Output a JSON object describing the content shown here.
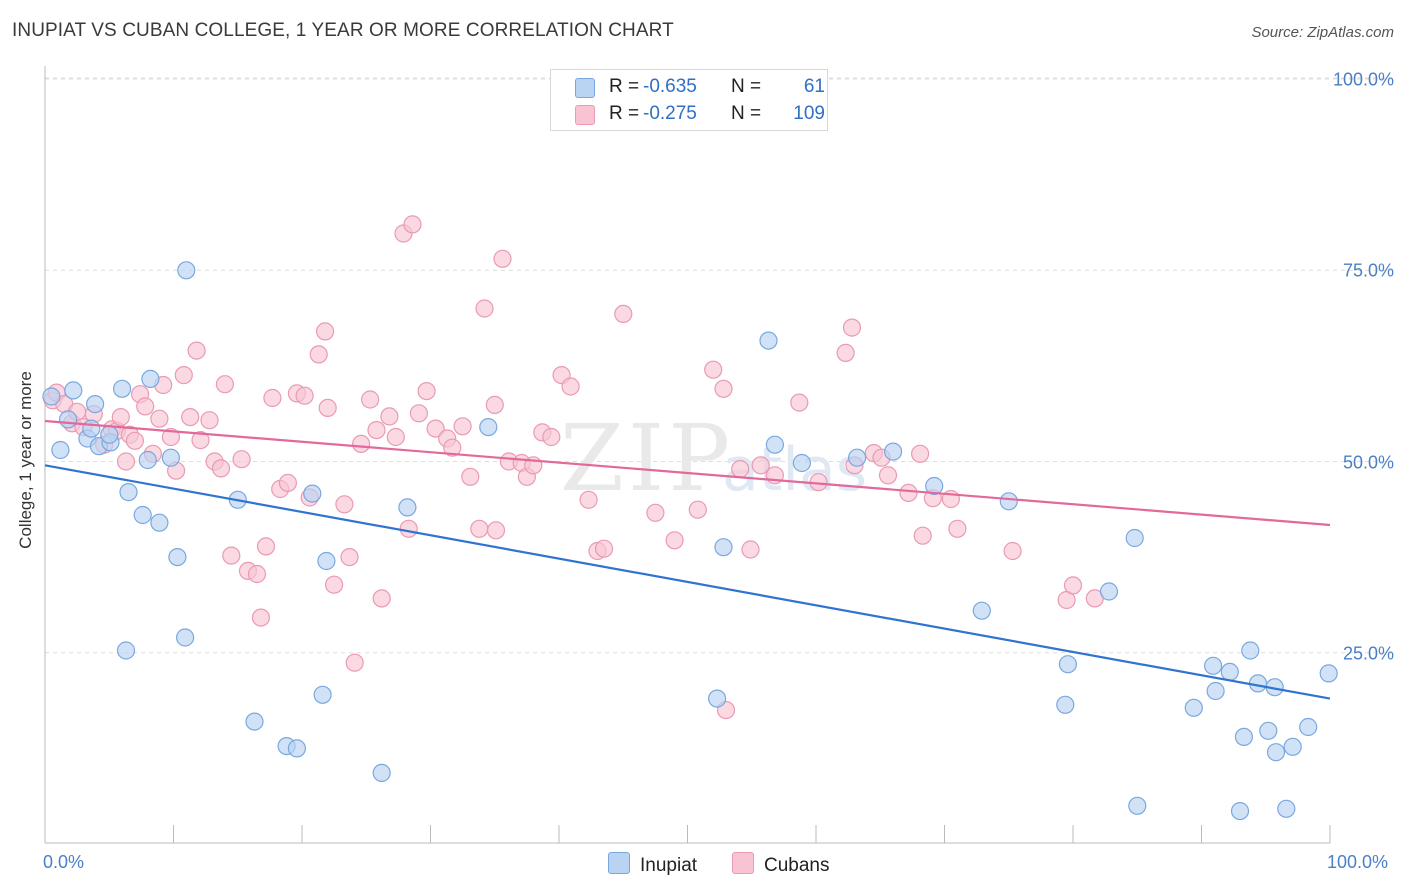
{
  "header": {
    "title": "INUPIAT VS CUBAN COLLEGE, 1 YEAR OR MORE CORRELATION CHART",
    "source": "Source: ZipAtlas.com"
  },
  "legend": {
    "rows": [
      {
        "label": "R =",
        "r_value": "-0.635",
        "n_label": "N =",
        "n_value": "61"
      },
      {
        "label": "R =",
        "r_value": "-0.275",
        "n_label": "N =",
        "n_value": "109"
      }
    ]
  },
  "bottom_legend": {
    "inupiat": "Inupiat",
    "cubans": "Cubans"
  },
  "colors": {
    "inupiat_fill": "#b9d3f3",
    "inupiat_stroke": "#7aa8de",
    "inupiat_line": "#2f74d0",
    "cubans_fill": "#f8c4d4",
    "cubans_stroke": "#ea9ab3",
    "cubans_line": "#e2699a",
    "tick_text": "#4a7fc8",
    "grid": "#dddddd"
  },
  "watermark": {
    "zip": "ZIP",
    "atlas": "atlas"
  },
  "chart_data": {
    "type": "scatter",
    "title": "INUPIAT VS CUBAN COLLEGE, 1 YEAR OR MORE CORRELATION CHART",
    "xlabel": "",
    "ylabel": "College, 1 year or more",
    "xlim": [
      0,
      100
    ],
    "ylim": [
      0,
      100
    ],
    "x_tick_labels": [
      "0.0%",
      "100.0%"
    ],
    "y_ticks": [
      {
        "value": 25,
        "label": "25.0%"
      },
      {
        "value": 50,
        "label": "50.0%"
      },
      {
        "value": 75,
        "label": "75.0%"
      },
      {
        "value": 100,
        "label": "100.0%"
      }
    ],
    "series": [
      {
        "name": "Inupiat",
        "r": -0.635,
        "n": 61,
        "trend": {
          "x": [
            0,
            100
          ],
          "y": [
            49.5,
            19.0
          ]
        },
        "points": [
          [
            0.5,
            58.5
          ],
          [
            1.2,
            51.5
          ],
          [
            2.2,
            59.3
          ],
          [
            1.8,
            55.5
          ],
          [
            3.3,
            53.0
          ],
          [
            3.9,
            57.5
          ],
          [
            4.2,
            52.0
          ],
          [
            5.1,
            52.5
          ],
          [
            5.0,
            53.5
          ],
          [
            6.0,
            59.5
          ],
          [
            6.5,
            46.0
          ],
          [
            7.6,
            43.0
          ],
          [
            8.2,
            60.8
          ],
          [
            8.0,
            50.2
          ],
          [
            8.9,
            42.0
          ],
          [
            9.8,
            50.5
          ],
          [
            10.3,
            37.5
          ],
          [
            10.9,
            27.0
          ],
          [
            11.0,
            75.0
          ],
          [
            6.3,
            25.3
          ],
          [
            15.0,
            45.0
          ],
          [
            16.3,
            16.0
          ],
          [
            18.8,
            12.8
          ],
          [
            19.6,
            12.5
          ],
          [
            20.8,
            45.8
          ],
          [
            21.6,
            19.5
          ],
          [
            21.9,
            37.0
          ],
          [
            26.2,
            9.3
          ],
          [
            28.2,
            44.0
          ],
          [
            34.5,
            54.5
          ],
          [
            52.3,
            19.0
          ],
          [
            52.8,
            38.8
          ],
          [
            56.8,
            52.2
          ],
          [
            56.3,
            65.8
          ],
          [
            58.9,
            49.8
          ],
          [
            63.2,
            50.5
          ],
          [
            66.0,
            51.3
          ],
          [
            69.2,
            46.8
          ],
          [
            72.9,
            30.5
          ],
          [
            75.0,
            44.8
          ],
          [
            79.6,
            23.5
          ],
          [
            79.4,
            18.2
          ],
          [
            84.8,
            40.0
          ],
          [
            82.8,
            33.0
          ],
          [
            85.0,
            5.0
          ],
          [
            89.4,
            17.8
          ],
          [
            90.9,
            23.3
          ],
          [
            91.1,
            20.0
          ],
          [
            92.2,
            22.5
          ],
          [
            93.3,
            14.0
          ],
          [
            93.8,
            25.3
          ],
          [
            93.0,
            4.3
          ],
          [
            94.4,
            21.0
          ],
          [
            95.7,
            20.5
          ],
          [
            95.2,
            14.8
          ],
          [
            95.8,
            12.0
          ],
          [
            96.6,
            4.6
          ],
          [
            97.1,
            12.7
          ],
          [
            98.3,
            15.3
          ],
          [
            99.9,
            22.3
          ],
          [
            3.6,
            54.3
          ]
        ]
      },
      {
        "name": "Cubans",
        "r": -0.275,
        "n": 109,
        "trend": {
          "x": [
            0,
            100
          ],
          "y": [
            55.3,
            41.7
          ]
        },
        "points": [
          [
            0.6,
            58.0
          ],
          [
            0.9,
            59.0
          ],
          [
            1.5,
            57.5
          ],
          [
            2.1,
            55.0
          ],
          [
            2.5,
            56.5
          ],
          [
            3.0,
            54.5
          ],
          [
            3.8,
            56.2
          ],
          [
            4.6,
            52.2
          ],
          [
            5.2,
            54.2
          ],
          [
            5.6,
            54.0
          ],
          [
            5.9,
            55.8
          ],
          [
            6.3,
            50.0
          ],
          [
            6.6,
            53.5
          ],
          [
            7.0,
            52.7
          ],
          [
            7.4,
            58.8
          ],
          [
            7.8,
            57.2
          ],
          [
            8.4,
            51.0
          ],
          [
            8.9,
            55.6
          ],
          [
            9.2,
            60.0
          ],
          [
            9.8,
            53.2
          ],
          [
            10.2,
            48.8
          ],
          [
            10.8,
            61.3
          ],
          [
            11.3,
            55.8
          ],
          [
            11.8,
            64.5
          ],
          [
            12.1,
            52.8
          ],
          [
            12.8,
            55.4
          ],
          [
            13.2,
            50.0
          ],
          [
            13.7,
            49.1
          ],
          [
            14.0,
            60.1
          ],
          [
            14.5,
            37.7
          ],
          [
            15.3,
            50.3
          ],
          [
            15.8,
            35.7
          ],
          [
            16.5,
            35.3
          ],
          [
            16.8,
            29.6
          ],
          [
            17.2,
            38.9
          ],
          [
            17.7,
            58.3
          ],
          [
            18.3,
            46.4
          ],
          [
            18.9,
            47.2
          ],
          [
            19.6,
            58.9
          ],
          [
            20.2,
            58.6
          ],
          [
            20.6,
            45.3
          ],
          [
            21.3,
            64.0
          ],
          [
            21.8,
            67.0
          ],
          [
            22.0,
            57.0
          ],
          [
            22.5,
            33.9
          ],
          [
            23.3,
            44.4
          ],
          [
            23.7,
            37.5
          ],
          [
            24.1,
            23.7
          ],
          [
            24.6,
            52.3
          ],
          [
            25.3,
            58.1
          ],
          [
            25.8,
            54.1
          ],
          [
            26.2,
            32.1
          ],
          [
            26.8,
            55.9
          ],
          [
            27.3,
            53.2
          ],
          [
            27.9,
            79.8
          ],
          [
            28.3,
            41.2
          ],
          [
            28.6,
            81.0
          ],
          [
            29.1,
            56.3
          ],
          [
            29.7,
            59.2
          ],
          [
            30.4,
            54.3
          ],
          [
            31.3,
            53.0
          ],
          [
            31.7,
            51.8
          ],
          [
            32.5,
            54.6
          ],
          [
            33.1,
            48.0
          ],
          [
            33.8,
            41.2
          ],
          [
            34.2,
            70.0
          ],
          [
            35.0,
            57.4
          ],
          [
            35.6,
            76.5
          ],
          [
            36.1,
            50.0
          ],
          [
            37.1,
            49.8
          ],
          [
            37.5,
            48.0
          ],
          [
            38.0,
            49.5
          ],
          [
            38.7,
            53.8
          ],
          [
            39.4,
            53.2
          ],
          [
            40.2,
            61.3
          ],
          [
            40.9,
            59.8
          ],
          [
            42.3,
            45.0
          ],
          [
            43.0,
            38.3
          ],
          [
            43.5,
            38.6
          ],
          [
            45.0,
            69.3
          ],
          [
            47.5,
            43.3
          ],
          [
            49.0,
            39.7
          ],
          [
            50.8,
            43.7
          ],
          [
            52.0,
            62.0
          ],
          [
            52.8,
            59.5
          ],
          [
            54.1,
            49.0
          ],
          [
            54.9,
            38.5
          ],
          [
            55.7,
            49.5
          ],
          [
            56.8,
            48.2
          ],
          [
            58.7,
            57.7
          ],
          [
            60.2,
            47.3
          ],
          [
            62.3,
            64.2
          ],
          [
            62.8,
            67.5
          ],
          [
            63.0,
            49.5
          ],
          [
            64.5,
            51.1
          ],
          [
            65.1,
            50.5
          ],
          [
            65.6,
            48.2
          ],
          [
            67.2,
            45.9
          ],
          [
            68.1,
            51.0
          ],
          [
            68.3,
            40.3
          ],
          [
            69.1,
            45.2
          ],
          [
            70.5,
            45.1
          ],
          [
            71.0,
            41.2
          ],
          [
            75.3,
            38.3
          ],
          [
            79.5,
            31.9
          ],
          [
            80.0,
            33.8
          ],
          [
            81.7,
            32.1
          ],
          [
            53.0,
            17.5
          ],
          [
            35.1,
            41.0
          ]
        ]
      }
    ]
  }
}
